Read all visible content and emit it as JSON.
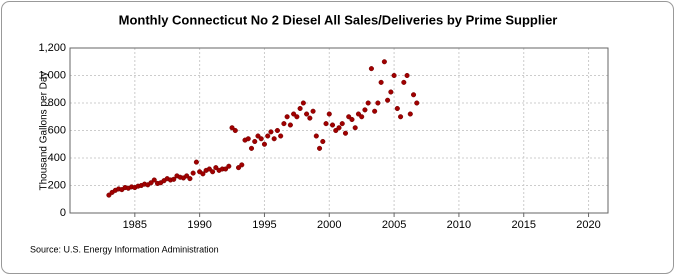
{
  "chart_data": {
    "type": "scatter",
    "title": "Monthly Connecticut No 2 Diesel All Sales/Deliveries by Prime Supplier",
    "y_label": "Thousand Gallons per Day",
    "source": "Source: U.S. Energy Information Administration",
    "series": [
      {
        "name": "Connecticut No 2 Diesel All Sales/Deliveries by Prime Supplier",
        "color": "#a00000",
        "x": [
          1983,
          1983.25,
          1983.5,
          1983.75,
          1984,
          1984.25,
          1984.5,
          1984.75,
          1985,
          1985.25,
          1985.5,
          1985.75,
          1986,
          1986.25,
          1986.5,
          1986.75,
          1987,
          1987.25,
          1987.5,
          1987.75,
          1988,
          1988.25,
          1988.5,
          1988.75,
          1989,
          1989.25,
          1989.5,
          1989.75,
          1990,
          1990.25,
          1990.5,
          1990.75,
          1991,
          1991.25,
          1991.5,
          1991.75,
          1992,
          1992.25,
          1992.5,
          1992.75,
          1993,
          1993.25,
          1993.5,
          1993.75,
          1994,
          1994.25,
          1994.5,
          1994.75,
          1995,
          1995.25,
          1995.5,
          1995.75,
          1996,
          1996.25,
          1996.5,
          1996.75,
          1997,
          1997.25,
          1997.5,
          1997.75,
          1998,
          1998.25,
          1998.5,
          1998.75,
          1999,
          1999.25,
          1999.5,
          1999.75,
          2000,
          2000.25,
          2000.5,
          2000.75,
          2001,
          2001.25,
          2001.5,
          2001.75,
          2002,
          2002.25,
          2002.5,
          2002.75,
          2003,
          2003.25,
          2003.5,
          2003.75,
          2004,
          2004.25,
          2004.5,
          2004.75,
          2005,
          2005.25,
          2005.5,
          2005.75,
          2006,
          2006.25,
          2006.5,
          2006.75
        ],
        "values": [
          130,
          150,
          165,
          175,
          170,
          185,
          180,
          190,
          185,
          195,
          200,
          210,
          205,
          220,
          240,
          215,
          220,
          235,
          250,
          240,
          245,
          270,
          260,
          255,
          270,
          250,
          290,
          370,
          300,
          285,
          310,
          320,
          300,
          330,
          310,
          320,
          320,
          340,
          620,
          600,
          330,
          350,
          530,
          540,
          470,
          520,
          560,
          540,
          500,
          560,
          590,
          540,
          600,
          560,
          650,
          700,
          640,
          720,
          700,
          760,
          800,
          720,
          690,
          740,
          560,
          470,
          520,
          650,
          720,
          640,
          600,
          620,
          650,
          580,
          700,
          680,
          620,
          720,
          700,
          750,
          800,
          1050,
          740,
          800,
          950,
          1100,
          820,
          880,
          1000,
          760,
          700,
          950,
          1000,
          720,
          860,
          800
        ]
      }
    ],
    "xlim": [
      1980,
      2021.5
    ],
    "xticks": [
      1985,
      1990,
      1995,
      2000,
      2005,
      2010,
      2015,
      2020
    ],
    "ylim": [
      0,
      1200
    ],
    "yticks": [
      0,
      200,
      400,
      600,
      800,
      {
        "value": 1000,
        "label": "1,000"
      },
      {
        "value": 1200,
        "label": "1,200"
      }
    ],
    "grid": true
  }
}
